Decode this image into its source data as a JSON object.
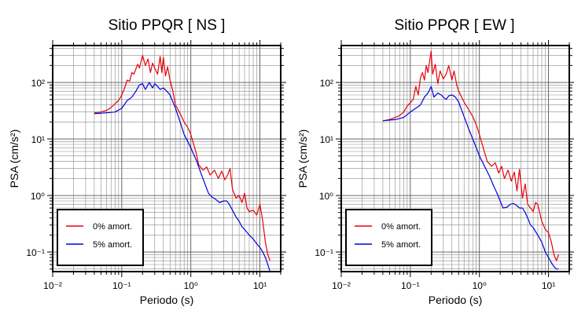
{
  "chart_data": [
    {
      "type": "line",
      "title": "Sitio PPQR [ NS ]",
      "xlabel": "Periodo (s)",
      "ylabel": "PSA (cm/s²)",
      "xscale": "log",
      "yscale": "log",
      "xlim": [
        0.01,
        20
      ],
      "ylim": [
        0.045,
        450
      ],
      "x_ticks": [
        "10⁻²",
        "10⁻¹",
        "10⁰",
        "10¹"
      ],
      "y_ticks": [
        "10⁻¹",
        "10⁰",
        "10¹",
        "10²"
      ],
      "grid": true,
      "legend_position": "bottom-left",
      "series": [
        {
          "name": "0% amort.",
          "color": "#e8000b",
          "points": [
            [
              0.04,
              29
            ],
            [
              0.05,
              30
            ],
            [
              0.06,
              32
            ],
            [
              0.07,
              36
            ],
            [
              0.08,
              42
            ],
            [
              0.09,
              48
            ],
            [
              0.1,
              60
            ],
            [
              0.11,
              80
            ],
            [
              0.12,
              110
            ],
            [
              0.13,
              105
            ],
            [
              0.14,
              150
            ],
            [
              0.15,
              140
            ],
            [
              0.17,
              210
            ],
            [
              0.18,
              180
            ],
            [
              0.2,
              300
            ],
            [
              0.22,
              200
            ],
            [
              0.24,
              260
            ],
            [
              0.26,
              150
            ],
            [
              0.28,
              220
            ],
            [
              0.3,
              180
            ],
            [
              0.33,
              140
            ],
            [
              0.36,
              290
            ],
            [
              0.38,
              150
            ],
            [
              0.4,
              280
            ],
            [
              0.43,
              130
            ],
            [
              0.46,
              190
            ],
            [
              0.5,
              110
            ],
            [
              0.55,
              70
            ],
            [
              0.6,
              40
            ],
            [
              0.7,
              28
            ],
            [
              0.8,
              20
            ],
            [
              0.9,
              16
            ],
            [
              1.0,
              12
            ],
            [
              1.1,
              8
            ],
            [
              1.2,
              5.5
            ],
            [
              1.3,
              3.5
            ],
            [
              1.5,
              2.8
            ],
            [
              1.7,
              3.2
            ],
            [
              1.9,
              2.3
            ],
            [
              2.2,
              2.8
            ],
            [
              2.5,
              2.0
            ],
            [
              2.8,
              2.7
            ],
            [
              3.1,
              1.9
            ],
            [
              3.4,
              2.3
            ],
            [
              3.7,
              3.0
            ],
            [
              4.0,
              1.3
            ],
            [
              4.5,
              0.9
            ],
            [
              5.0,
              1.0
            ],
            [
              5.5,
              0.75
            ],
            [
              6,
              1.1
            ],
            [
              6.5,
              0.6
            ],
            [
              7,
              0.52
            ],
            [
              8,
              0.55
            ],
            [
              9,
              0.45
            ],
            [
              10,
              0.7
            ],
            [
              11,
              0.35
            ],
            [
              12,
              0.15
            ],
            [
              13,
              0.09
            ],
            [
              14,
              0.07
            ]
          ]
        },
        {
          "name": "5% amort.",
          "color": "#0000dd",
          "points": [
            [
              0.04,
              28
            ],
            [
              0.06,
              29
            ],
            [
              0.08,
              30
            ],
            [
              0.1,
              35
            ],
            [
              0.12,
              48
            ],
            [
              0.14,
              55
            ],
            [
              0.16,
              70
            ],
            [
              0.18,
              90
            ],
            [
              0.2,
              95
            ],
            [
              0.22,
              75
            ],
            [
              0.25,
              100
            ],
            [
              0.28,
              80
            ],
            [
              0.3,
              95
            ],
            [
              0.33,
              85
            ],
            [
              0.36,
              75
            ],
            [
              0.4,
              80
            ],
            [
              0.45,
              70
            ],
            [
              0.5,
              60
            ],
            [
              0.6,
              35
            ],
            [
              0.7,
              20
            ],
            [
              0.8,
              12
            ],
            [
              0.9,
              9
            ],
            [
              1.0,
              7
            ],
            [
              1.2,
              4.2
            ],
            [
              1.4,
              2.5
            ],
            [
              1.6,
              1.6
            ],
            [
              1.8,
              1.1
            ],
            [
              2.0,
              0.95
            ],
            [
              2.3,
              0.85
            ],
            [
              2.6,
              0.75
            ],
            [
              3.0,
              0.8
            ],
            [
              3.3,
              0.8
            ],
            [
              3.6,
              0.7
            ],
            [
              4.0,
              0.55
            ],
            [
              4.5,
              0.42
            ],
            [
              5,
              0.35
            ],
            [
              5.5,
              0.28
            ],
            [
              6,
              0.25
            ],
            [
              7,
              0.2
            ],
            [
              8,
              0.17
            ],
            [
              9,
              0.14
            ],
            [
              10,
              0.12
            ],
            [
              11,
              0.1
            ],
            [
              12,
              0.08
            ],
            [
              13,
              0.06
            ],
            [
              14,
              0.045
            ]
          ]
        }
      ]
    },
    {
      "type": "line",
      "title": "Sitio PPQR [ EW ]",
      "xlabel": "Periodo (s)",
      "ylabel": "PSA (cm/s²)",
      "xscale": "log",
      "yscale": "log",
      "xlim": [
        0.01,
        20
      ],
      "ylim": [
        0.045,
        450
      ],
      "x_ticks": [
        "10⁻²",
        "10⁻¹",
        "10⁰",
        "10¹"
      ],
      "y_ticks": [
        "10⁻¹",
        "10⁰",
        "10¹",
        "10²"
      ],
      "grid": true,
      "legend_position": "bottom-left",
      "series": [
        {
          "name": "0% amort.",
          "color": "#e8000b",
          "points": [
            [
              0.04,
              21
            ],
            [
              0.05,
              22
            ],
            [
              0.06,
              24
            ],
            [
              0.07,
              26
            ],
            [
              0.08,
              30
            ],
            [
              0.09,
              38
            ],
            [
              0.1,
              44
            ],
            [
              0.11,
              50
            ],
            [
              0.12,
              85
            ],
            [
              0.13,
              60
            ],
            [
              0.14,
              120
            ],
            [
              0.15,
              150
            ],
            [
              0.16,
              110
            ],
            [
              0.17,
              200
            ],
            [
              0.18,
              150
            ],
            [
              0.2,
              360
            ],
            [
              0.21,
              140
            ],
            [
              0.23,
              210
            ],
            [
              0.25,
              95
            ],
            [
              0.27,
              160
            ],
            [
              0.3,
              115
            ],
            [
              0.33,
              140
            ],
            [
              0.36,
              200
            ],
            [
              0.4,
              110
            ],
            [
              0.43,
              160
            ],
            [
              0.47,
              90
            ],
            [
              0.5,
              70
            ],
            [
              0.6,
              45
            ],
            [
              0.7,
              33
            ],
            [
              0.8,
              25
            ],
            [
              0.9,
              18
            ],
            [
              1.0,
              12
            ],
            [
              1.1,
              8
            ],
            [
              1.2,
              5.5
            ],
            [
              1.3,
              4.0
            ],
            [
              1.5,
              3.3
            ],
            [
              1.7,
              3.8
            ],
            [
              1.9,
              2.5
            ],
            [
              2.1,
              3.3
            ],
            [
              2.3,
              2.0
            ],
            [
              2.6,
              2.8
            ],
            [
              2.9,
              1.8
            ],
            [
              3.2,
              2.6
            ],
            [
              3.5,
              1.2
            ],
            [
              3.8,
              2.9
            ],
            [
              4.2,
              0.9
            ],
            [
              4.6,
              1.6
            ],
            [
              5,
              0.7
            ],
            [
              5.5,
              0.6
            ],
            [
              6,
              0.52
            ],
            [
              6.5,
              0.75
            ],
            [
              7,
              0.7
            ],
            [
              8,
              0.35
            ],
            [
              9,
              0.25
            ],
            [
              10,
              0.22
            ],
            [
              11,
              0.15
            ],
            [
              12,
              0.09
            ],
            [
              13,
              0.07
            ],
            [
              14,
              0.09
            ]
          ]
        },
        {
          "name": "5% amort.",
          "color": "#0000dd",
          "points": [
            [
              0.04,
              21
            ],
            [
              0.06,
              22
            ],
            [
              0.08,
              24
            ],
            [
              0.1,
              30
            ],
            [
              0.12,
              35
            ],
            [
              0.14,
              40
            ],
            [
              0.16,
              55
            ],
            [
              0.18,
              65
            ],
            [
              0.2,
              85
            ],
            [
              0.22,
              55
            ],
            [
              0.25,
              65
            ],
            [
              0.28,
              60
            ],
            [
              0.3,
              55
            ],
            [
              0.33,
              50
            ],
            [
              0.36,
              58
            ],
            [
              0.4,
              60
            ],
            [
              0.45,
              55
            ],
            [
              0.5,
              45
            ],
            [
              0.6,
              25
            ],
            [
              0.7,
              15
            ],
            [
              0.8,
              10
            ],
            [
              0.9,
              7
            ],
            [
              1.0,
              5
            ],
            [
              1.2,
              3.2
            ],
            [
              1.4,
              2.2
            ],
            [
              1.6,
              1.5
            ],
            [
              1.8,
              1.1
            ],
            [
              2.0,
              0.8
            ],
            [
              2.2,
              0.6
            ],
            [
              2.5,
              0.62
            ],
            [
              2.8,
              0.7
            ],
            [
              3.1,
              0.72
            ],
            [
              3.4,
              0.68
            ],
            [
              3.8,
              0.6
            ],
            [
              4.2,
              0.6
            ],
            [
              4.6,
              0.5
            ],
            [
              5,
              0.4
            ],
            [
              5.5,
              0.3
            ],
            [
              6,
              0.27
            ],
            [
              7,
              0.2
            ],
            [
              8,
              0.15
            ],
            [
              9,
              0.1
            ],
            [
              10,
              0.08
            ],
            [
              11,
              0.065
            ],
            [
              12,
              0.055
            ],
            [
              13,
              0.05
            ],
            [
              14,
              0.05
            ]
          ]
        }
      ]
    }
  ]
}
